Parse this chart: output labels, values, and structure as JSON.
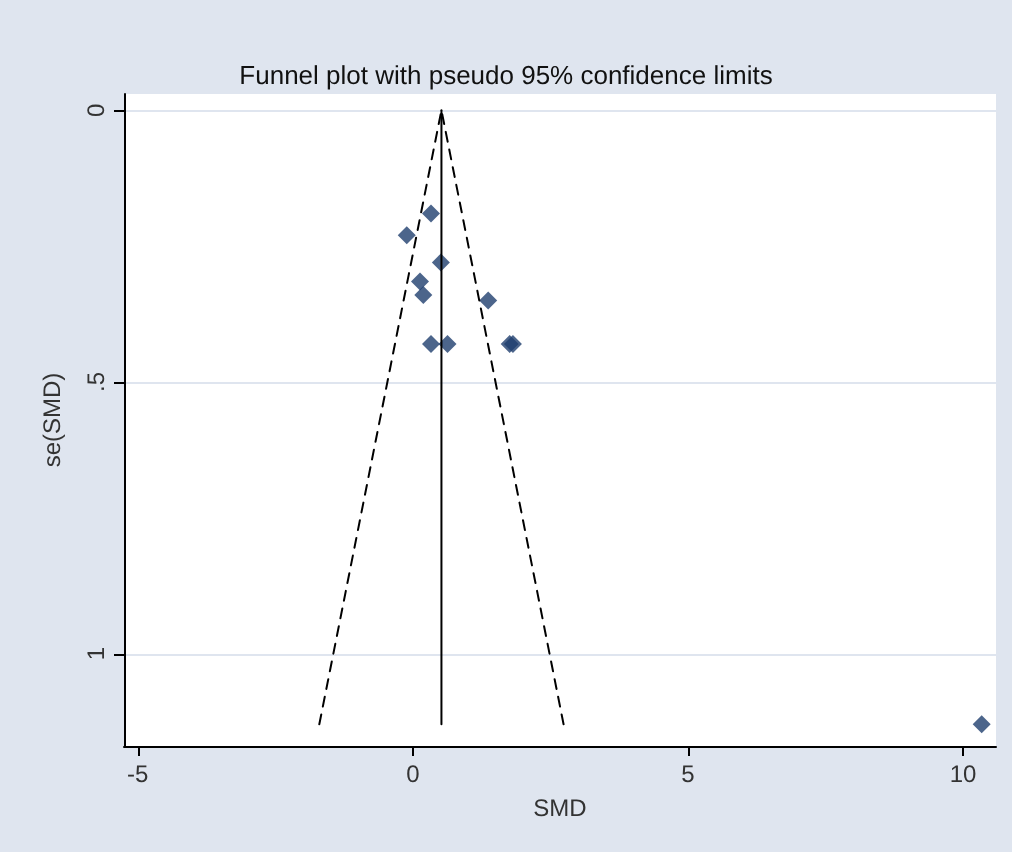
{
  "chart_data": {
    "type": "scatter",
    "title": "Funnel plot with pseudo 95% confidence limits",
    "xlabel": "SMD",
    "ylabel": "se(SMD)",
    "xlim": [
      -5.25,
      10.6
    ],
    "xticks": [
      -5,
      0,
      5,
      10
    ],
    "ylim": [
      1.17,
      -0.03
    ],
    "yticks": [
      0,
      {
        "value": 0.5,
        "label": ".5"
      },
      1
    ],
    "grid": "y",
    "marker": "diamond",
    "series": [
      {
        "color": "#1f3f6e",
        "x": [
          0.33,
          -0.11,
          0.51,
          0.13,
          0.19,
          1.37,
          0.33,
          0.63,
          1.76,
          1.82,
          10.34
        ],
        "values": [
          0.19,
          0.23,
          0.28,
          0.315,
          0.34,
          0.35,
          0.43,
          0.43,
          0.43,
          0.43,
          1.13
        ]
      },
      {
        "type": "line",
        "color": "#000000",
        "line_style": "dashed",
        "marker": "none",
        "x": [
          -1.7,
          0.52,
          2.74
        ],
        "values": [
          1.13,
          0,
          1.13
        ]
      },
      {
        "type": "line",
        "color": "#000000",
        "line_style": "solid",
        "marker": "none",
        "x": [
          0.52,
          0.52
        ],
        "values": [
          0,
          1.13
        ]
      }
    ]
  }
}
